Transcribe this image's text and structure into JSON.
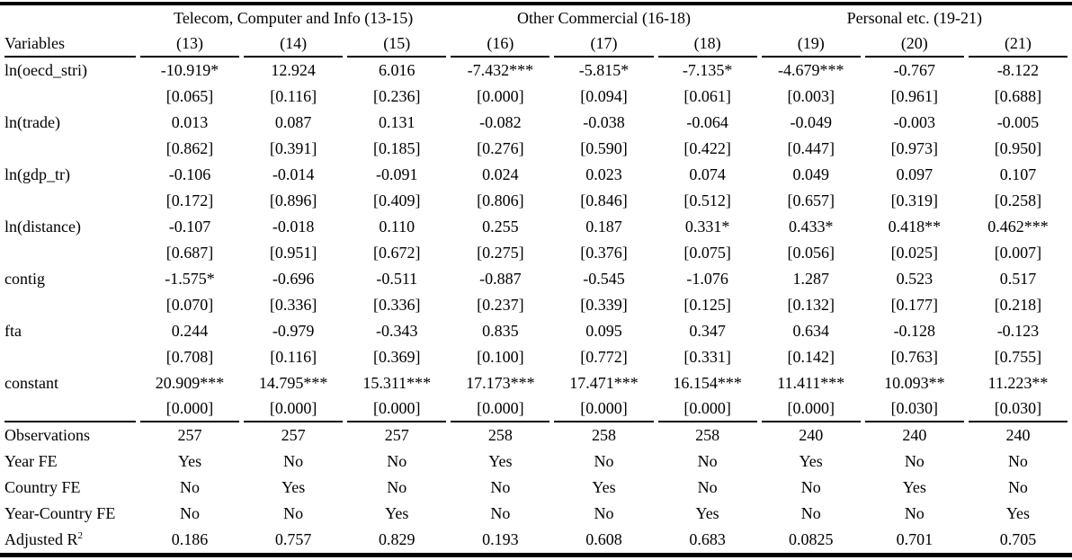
{
  "table": {
    "group_headers": [
      {
        "label": "",
        "span": 1
      },
      {
        "label": "Telecom, Computer and Info (13-15)",
        "span": 3
      },
      {
        "label": "Other Commercial (16-18)",
        "span": 3
      },
      {
        "label": "Personal etc. (19-21)",
        "span": 3
      }
    ],
    "column_headers": [
      "Variables",
      "(13)",
      "(14)",
      "(15)",
      "(16)",
      "(17)",
      "(18)",
      "(19)",
      "(20)",
      "(21)"
    ],
    "coefficient_rows": [
      {
        "variable": "ln(oecd_stri)",
        "coefficients": [
          "-10.919*",
          "12.924",
          "6.016",
          "-7.432***",
          "-5.815*",
          "-7.135*",
          "-4.679***",
          "-0.767",
          "-8.122"
        ],
        "pvalues": [
          "[0.065]",
          "[0.116]",
          "[0.236]",
          "[0.000]",
          "[0.094]",
          "[0.061]",
          "[0.003]",
          "[0.961]",
          "[0.688]"
        ]
      },
      {
        "variable": "ln(trade)",
        "coefficients": [
          "0.013",
          "0.087",
          "0.131",
          "-0.082",
          "-0.038",
          "-0.064",
          "-0.049",
          "-0.003",
          "-0.005"
        ],
        "pvalues": [
          "[0.862]",
          "[0.391]",
          "[0.185]",
          "[0.276]",
          "[0.590]",
          "[0.422]",
          "[0.447]",
          "[0.973]",
          "[0.950]"
        ]
      },
      {
        "variable": "ln(gdp_tr)",
        "coefficients": [
          "-0.106",
          "-0.014",
          "-0.091",
          "0.024",
          "0.023",
          "0.074",
          "0.049",
          "0.097",
          "0.107"
        ],
        "pvalues": [
          "[0.172]",
          "[0.896]",
          "[0.409]",
          "[0.806]",
          "[0.846]",
          "[0.512]",
          "[0.657]",
          "[0.319]",
          "[0.258]"
        ]
      },
      {
        "variable": "ln(distance)",
        "coefficients": [
          "-0.107",
          "-0.018",
          "0.110",
          "0.255",
          "0.187",
          "0.331*",
          "0.433*",
          "0.418**",
          "0.462***"
        ],
        "pvalues": [
          "[0.687]",
          "[0.951]",
          "[0.672]",
          "[0.275]",
          "[0.376]",
          "[0.075]",
          "[0.056]",
          "[0.025]",
          "[0.007]"
        ]
      },
      {
        "variable": "contig",
        "coefficients": [
          "-1.575*",
          "-0.696",
          "-0.511",
          "-0.887",
          "-0.545",
          "-1.076",
          "1.287",
          "0.523",
          "0.517"
        ],
        "pvalues": [
          "[0.070]",
          "[0.336]",
          "[0.336]",
          "[0.237]",
          "[0.339]",
          "[0.125]",
          "[0.132]",
          "[0.177]",
          "[0.218]"
        ]
      },
      {
        "variable": "fta",
        "coefficients": [
          "0.244",
          "-0.979",
          "-0.343",
          "0.835",
          "0.095",
          "0.347",
          "0.634",
          "-0.128",
          "-0.123"
        ],
        "pvalues": [
          "[0.708]",
          "[0.116]",
          "[0.369]",
          "[0.100]",
          "[0.772]",
          "[0.331]",
          "[0.142]",
          "[0.763]",
          "[0.755]"
        ]
      },
      {
        "variable": "constant",
        "coefficients": [
          "20.909***",
          "14.795***",
          "15.311***",
          "17.173***",
          "17.471***",
          "16.154***",
          "11.411***",
          "10.093**",
          "11.223**"
        ],
        "pvalues": [
          "[0.000]",
          "[0.000]",
          "[0.000]",
          "[0.000]",
          "[0.000]",
          "[0.000]",
          "[0.000]",
          "[0.030]",
          "[0.030]"
        ]
      }
    ],
    "summary_rows": [
      {
        "label": "Observations",
        "values": [
          "257",
          "257",
          "257",
          "258",
          "258",
          "258",
          "240",
          "240",
          "240"
        ]
      },
      {
        "label": "Year FE",
        "values": [
          "Yes",
          "No",
          "No",
          "Yes",
          "No",
          "No",
          "Yes",
          "No",
          "No"
        ]
      },
      {
        "label": "Country FE",
        "values": [
          "No",
          "Yes",
          "No",
          "No",
          "Yes",
          "No",
          "No",
          "Yes",
          "No"
        ]
      },
      {
        "label": "Year-Country FE",
        "values": [
          "No",
          "No",
          "Yes",
          "No",
          "No",
          "Yes",
          "No",
          "No",
          "Yes"
        ]
      },
      {
        "label": "Adjusted R",
        "sup": "2",
        "values": [
          "0.186",
          "0.757",
          "0.829",
          "0.193",
          "0.608",
          "0.683",
          "0.0825",
          "0.701",
          "0.705"
        ]
      }
    ],
    "colors": {
      "text": "#000000",
      "background": "#ffffff",
      "rule": "#000000"
    }
  }
}
